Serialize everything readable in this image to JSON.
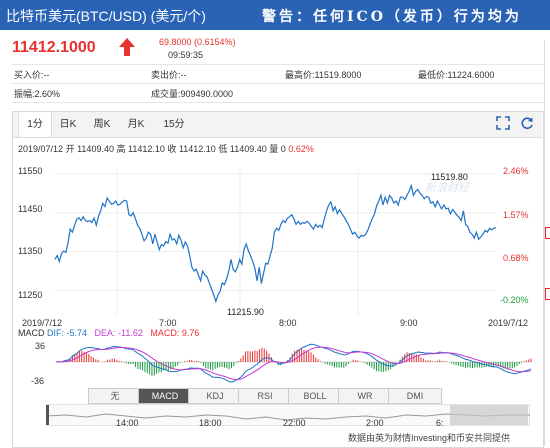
{
  "header": {
    "title": "比特币美元(BTC/USD) (美元/个)",
    "warning": "警告：任何ICO（发币）行为均为"
  },
  "quote": {
    "price": "11412.1000",
    "change": "69.8000 (0.6154%)",
    "time": "09:59:35"
  },
  "stats": {
    "buy": "买入价:--",
    "sell": "卖出价:--",
    "high": "最高价:11519.8000",
    "low": "最低价:11224.6000",
    "amplitude": "振幅:2.60%",
    "volume": "成交量:909490.0000"
  },
  "tabs": [
    "1分",
    "日K",
    "周K",
    "月K",
    "15分"
  ],
  "active_tab": "1分",
  "ohlc": {
    "date": "2019/07/12",
    "open_label": "开",
    "open": "11409.40",
    "high_label": "高",
    "high": "11412.10",
    "close_label": "收",
    "close": "11412.10",
    "low_label": "低",
    "low": "11409.40",
    "vol_label": "量",
    "vol": "0",
    "pct": "0.62%"
  },
  "chart": {
    "y_ticks": [
      "11550",
      "11450",
      "11350",
      "11250"
    ],
    "pct_ticks": [
      "2.46%",
      "1.57%",
      "0.68%",
      "-0.20%"
    ],
    "x_ticks": [
      "2019/7/12",
      "7:00",
      "8:00",
      "9:00",
      "2019/7/12"
    ],
    "high_marker": "11519.80",
    "low_marker": "11215.90",
    "watermark": "新浪财经"
  },
  "macd": {
    "label": "MACD",
    "dif": "DIF: -5.74",
    "dea": "DEA: -11.62",
    "macd": "MACD: 9.76",
    "y_top": "36",
    "y_bottom": "-36"
  },
  "indicators": [
    "无",
    "MACD",
    "KDJ",
    "RSI",
    "BOLL",
    "WR",
    "DMI"
  ],
  "active_indicator": "MACD",
  "timeline": {
    "ticks": [
      "14:00",
      "18:00",
      "22:00",
      "2:00",
      "6:"
    ]
  },
  "source": "数据由英为财情Investing和币安共同提供",
  "chart_data": {
    "type": "line",
    "title": "",
    "xlabel": "",
    "ylabel": "",
    "ylim": [
      11200,
      11560
    ],
    "series": [
      {
        "values": [
          11330,
          11340,
          11325,
          11345,
          11352,
          11348,
          11372,
          11408,
          11400,
          11418,
          11433,
          11437,
          11430,
          11440,
          11430,
          11427,
          11430,
          11425,
          11436,
          11418,
          11440,
          11455,
          11474,
          11466,
          11488,
          11480,
          11472,
          11475,
          11480,
          11470,
          11472,
          11478,
          11482,
          11480,
          11445,
          11442,
          11450,
          11435,
          11418,
          11410,
          11395,
          11378,
          11385,
          11400,
          11395,
          11370,
          11395,
          11375,
          11355,
          11368,
          11365,
          11376,
          11372,
          11395,
          11380,
          11383,
          11370,
          11392,
          11380,
          11360,
          11375,
          11365,
          11340,
          11310,
          11300,
          11305,
          11290,
          11275,
          11300,
          11290,
          11285,
          11270,
          11255,
          11240,
          11222,
          11238,
          11248,
          11270,
          11265,
          11280,
          11300,
          11330,
          11305,
          11298,
          11310,
          11330,
          11318,
          11355,
          11370,
          11353,
          11340,
          11325,
          11307,
          11275,
          11310,
          11268,
          11295,
          11320,
          11318,
          11340,
          11358,
          11400,
          11410,
          11405,
          11420,
          11430,
          11425,
          11436,
          11440,
          11445,
          11434,
          11420,
          11428,
          11420,
          11425,
          11423,
          11428,
          11423,
          11415,
          11408,
          11420,
          11413,
          11418,
          11412,
          11435,
          11455,
          11470,
          11478,
          11455,
          11465,
          11448,
          11458,
          11448,
          11440,
          11430,
          11420,
          11408,
          11395,
          11400,
          11390,
          11385,
          11392,
          11390,
          11395,
          11405,
          11420,
          11435,
          11445,
          11467,
          11480,
          11495,
          11470,
          11490,
          11475,
          11495,
          11488,
          11475,
          11480,
          11470,
          11490,
          11490,
          11484,
          11495,
          11505,
          11520,
          11495,
          11505,
          11510,
          11500,
          11495,
          11486,
          11492,
          11490,
          11475,
          11478,
          11465,
          11480,
          11470,
          11460,
          11470,
          11460,
          11462,
          11447,
          11458,
          11452,
          11444,
          11438,
          11430,
          11455,
          11420,
          11415,
          11400,
          11395,
          11385,
          11400,
          11382,
          11388,
          11395,
          11405,
          11400,
          11410,
          11406,
          11410,
          11412
        ]
      }
    ]
  }
}
